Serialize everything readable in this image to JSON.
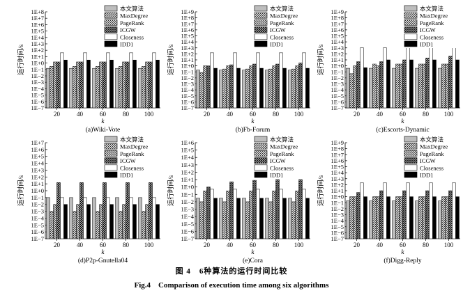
{
  "figure": {
    "caption_cn": "图 4　6种算法的运行时间比较",
    "caption_en": "Fig.4　Comparison of execution time among six algorithms"
  },
  "legend_labels": [
    "本文算法",
    "MaxDegree",
    "PageRank",
    "ICGW",
    "Closeness",
    "IDD1"
  ],
  "chart_data": [
    {
      "type": "bar",
      "title": "(a)Wiki-Vote",
      "xlabel": "k",
      "ylabel": "运行时间/s",
      "categories": [
        "20",
        "40",
        "60",
        "80",
        "100"
      ],
      "ylog_exp": [
        -7,
        8
      ],
      "series": [
        {
          "name": "本文算法",
          "values": [
            0.15,
            0.15,
            0.15,
            0.15,
            0.15
          ]
        },
        {
          "name": "MaxDegree",
          "values": [
            0.3,
            0.3,
            0.3,
            0.3,
            0.3
          ]
        },
        {
          "name": "PageRank",
          "values": [
            1.5,
            1.5,
            1.5,
            1.5,
            1.5
          ]
        },
        {
          "name": "ICGW",
          "values": [
            1.5,
            1.5,
            1.5,
            1.5,
            1.5
          ]
        },
        {
          "name": "Closeness",
          "values": [
            40,
            40,
            40,
            40,
            40
          ]
        },
        {
          "name": "IDD1",
          "values": [
            3,
            3,
            3,
            3,
            3
          ]
        }
      ]
    },
    {
      "type": "bar",
      "title": "(b)Fb-Forum",
      "xlabel": "k",
      "ylabel": "运行时间/s",
      "categories": [
        "20",
        "40",
        "60",
        "80",
        "100"
      ],
      "ylog_exp": [
        -7,
        9
      ],
      "series": [
        {
          "name": "本文算法",
          "values": [
            0.2,
            0.2,
            0.2,
            0.2,
            0.2
          ]
        },
        {
          "name": "MaxDegree",
          "values": [
            0.08,
            0.3,
            0.3,
            0.3,
            0.3
          ]
        },
        {
          "name": "PageRank",
          "values": [
            1,
            1,
            1,
            1,
            1
          ]
        },
        {
          "name": "ICGW",
          "values": [
            1,
            1.5,
            2,
            2,
            3
          ]
        },
        {
          "name": "Closeness",
          "values": [
            150,
            150,
            150,
            150,
            150
          ]
        },
        {
          "name": "IDD1",
          "values": [
            0.4,
            0.4,
            0.4,
            0.4,
            0.4
          ]
        }
      ]
    },
    {
      "type": "bar",
      "title": "(c)Escorts-Dynamic",
      "xlabel": "k",
      "ylabel": "运行时间/s",
      "categories": [
        "20",
        "40",
        "60",
        "80",
        "100"
      ],
      "ylog_exp": [
        -7,
        9
      ],
      "series": [
        {
          "name": "本文算法",
          "values": [
            0.4,
            0.4,
            0.4,
            0.4,
            0.4
          ]
        },
        {
          "name": "MaxDegree",
          "values": [
            0.05,
            2,
            2,
            2,
            2
          ]
        },
        {
          "name": "PageRank",
          "values": [
            1,
            1,
            2,
            2,
            2
          ]
        },
        {
          "name": "ICGW",
          "values": [
            5,
            5,
            10,
            20,
            40
          ]
        },
        {
          "name": "Closeness",
          "values": [
            1000,
            1000,
            1000,
            1000,
            1000
          ]
        },
        {
          "name": "IDD1",
          "values": [
            0.5,
            10,
            10,
            10,
            10
          ]
        }
      ]
    },
    {
      "type": "bar",
      "title": "(d)P2p-Gnutella04",
      "xlabel": "k",
      "ylabel": "运行时间/s",
      "categories": [
        "20",
        "40",
        "60",
        "80",
        "100"
      ],
      "ylog_exp": [
        -7,
        7
      ],
      "series": [
        {
          "name": "本文算法",
          "values": [
            0.1,
            0.1,
            0.1,
            0.1,
            0.1
          ]
        },
        {
          "name": "MaxDegree",
          "values": [
            0.001,
            0.001,
            0.001,
            0.001,
            0.001
          ]
        },
        {
          "name": "PageRank",
          "values": [
            0.01,
            0.01,
            0.01,
            0.01,
            0.01
          ]
        },
        {
          "name": "ICGW",
          "values": [
            15,
            15,
            15,
            15,
            15
          ]
        },
        {
          "name": "Closeness",
          "values": [
            0.1,
            0.1,
            0.1,
            0.1,
            0.1
          ]
        },
        {
          "name": "IDD1",
          "values": [
            0.01,
            0.01,
            0.01,
            0.01,
            0.01
          ]
        }
      ]
    },
    {
      "type": "bar",
      "title": "(e)Cora",
      "xlabel": "k",
      "ylabel": "运行时间/s",
      "categories": [
        "20",
        "40",
        "60",
        "80",
        "100"
      ],
      "ylog_exp": [
        -7,
        6
      ],
      "series": [
        {
          "name": "本文算法",
          "values": [
            0.03,
            0.03,
            0.03,
            0.03,
            0.03
          ]
        },
        {
          "name": "MaxDegree",
          "values": [
            0.01,
            0.01,
            0.01,
            0.01,
            0.01
          ]
        },
        {
          "name": "PageRank",
          "values": [
            0.3,
            0.3,
            0.3,
            0.3,
            0.3
          ]
        },
        {
          "name": "ICGW",
          "values": [
            1,
            5,
            8,
            10,
            10
          ]
        },
        {
          "name": "Closeness",
          "values": [
            0.5,
            0.5,
            0.5,
            0.5,
            0.5
          ]
        },
        {
          "name": "IDD1",
          "values": [
            0.03,
            0.03,
            0.03,
            0.03,
            0.03
          ]
        }
      ]
    },
    {
      "type": "bar",
      "title": "(f)Digg-Reply",
      "xlabel": "k",
      "ylabel": "运行时间/s",
      "categories": [
        "20",
        "40",
        "60",
        "80",
        "100"
      ],
      "ylog_exp": [
        -7,
        9
      ],
      "series": [
        {
          "name": "本文算法",
          "values": [
            0.2,
            0.2,
            0.2,
            0.2,
            0.2
          ]
        },
        {
          "name": "MaxDegree",
          "values": [
            1,
            1,
            1,
            1,
            1
          ]
        },
        {
          "name": "PageRank",
          "values": [
            1,
            1,
            1,
            1,
            1
          ]
        },
        {
          "name": "ICGW",
          "values": [
            5,
            10,
            10,
            10,
            10
          ]
        },
        {
          "name": "Closeness",
          "values": [
            200,
            200,
            200,
            200,
            200
          ]
        },
        {
          "name": "IDD1",
          "values": [
            1,
            1,
            1,
            1,
            1
          ]
        }
      ]
    }
  ]
}
